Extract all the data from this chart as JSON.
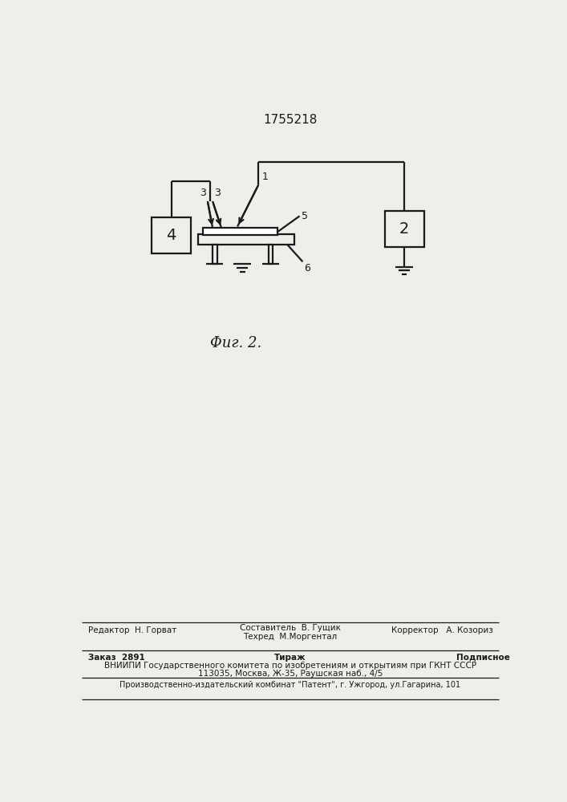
{
  "title": "1755218",
  "fig_label": "Φиг. 2.",
  "bg_color": "#f0eeea",
  "line_color": "#1a1a1a",
  "box2_label": "2",
  "box4_label": "4",
  "label1": "1",
  "label3a": "3",
  "label3b": "3",
  "label5": "5",
  "label6": "6",
  "footer_line1_left": "Редактор  Н. Горват",
  "footer_line1_center_top": "Составитель  В. Гущик",
  "footer_line1_center_bot": "Техред  М.Моргентал",
  "footer_line1_right": "Корректор   А. Козориз",
  "footer_line2_left": "Заказ  2891",
  "footer_line2_center": "Тираж",
  "footer_line2_right": "Подписное",
  "footer_line3": "ВНИИПИ Государственного комитета по изобретениям и открытиям при ГКНТ СССР",
  "footer_line4": "113035, Москва, Ж-35, Раушская наб., 4/5",
  "footer_line5": "Производственно-издательский комбинат \"Патент\", г. Ужгород, ул.Гагарина, 101"
}
